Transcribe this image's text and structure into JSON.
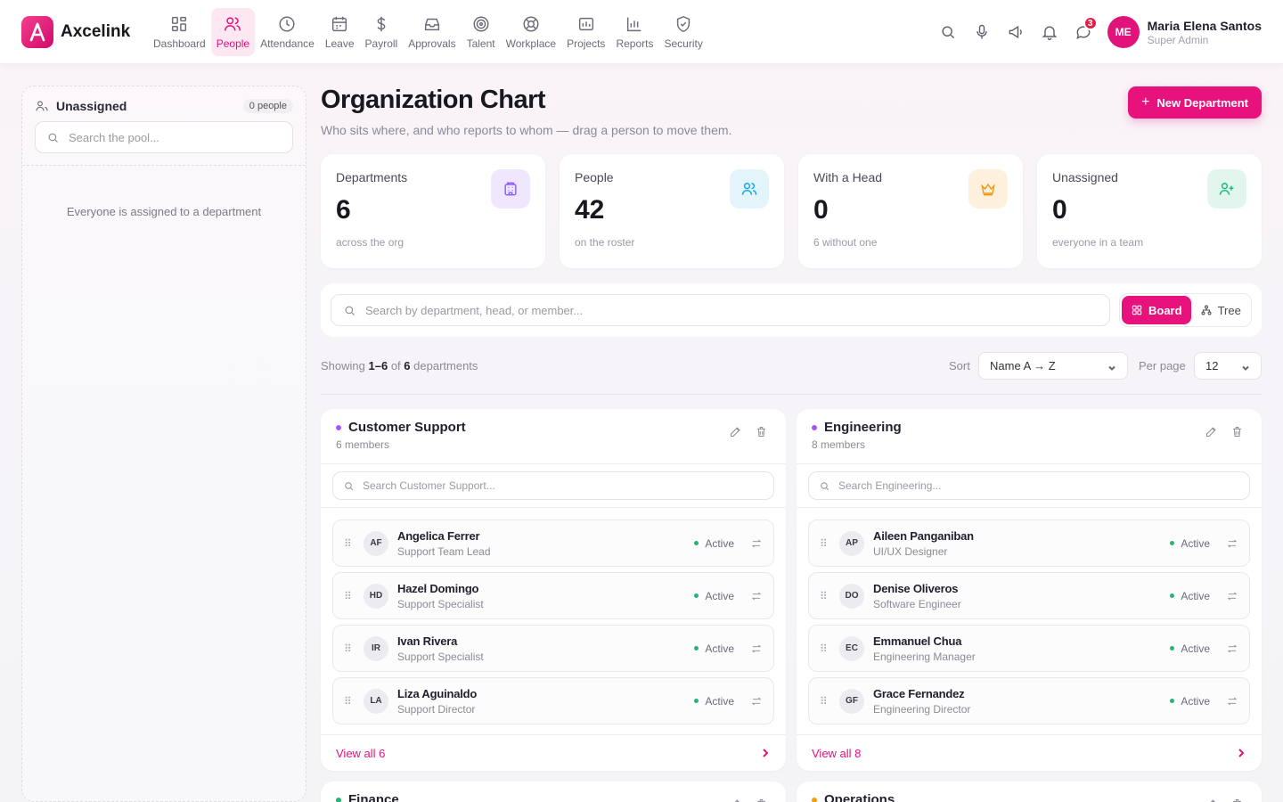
{
  "app": {
    "name": "Axcelink"
  },
  "nav": [
    {
      "label": "Dashboard",
      "icon": "dashboard-icon"
    },
    {
      "label": "People",
      "icon": "people-icon",
      "active": true
    },
    {
      "label": "Attendance",
      "icon": "clock-icon"
    },
    {
      "label": "Leave",
      "icon": "calendar-icon"
    },
    {
      "label": "Payroll",
      "icon": "dollar-icon"
    },
    {
      "label": "Approvals",
      "icon": "inbox-icon"
    },
    {
      "label": "Talent",
      "icon": "target-icon"
    },
    {
      "label": "Workplace",
      "icon": "lifebuoy-icon"
    },
    {
      "label": "Projects",
      "icon": "folder-icon"
    },
    {
      "label": "Reports",
      "icon": "bar-chart-icon"
    },
    {
      "label": "Security",
      "icon": "shield-icon"
    }
  ],
  "header": {
    "notifications_badge": "3",
    "user": {
      "initials": "ME",
      "name": "Maria Elena Santos",
      "role": "Super Admin"
    }
  },
  "pool": {
    "title": "Unassigned",
    "count": "0 people",
    "search_placeholder": "Search the pool...",
    "empty_text": "Everyone is assigned to a department"
  },
  "page": {
    "title": "Organization Chart",
    "subtitle": "Who sits where, and who reports to whom — drag a person to move them.",
    "new_department_label": "New Department"
  },
  "stats": [
    {
      "label": "Departments",
      "value": "6",
      "caption": "across the org",
      "icon": "building-icon",
      "bg": "#efe7fd",
      "color": "#8b5cf6"
    },
    {
      "label": "People",
      "value": "42",
      "caption": "on the roster",
      "icon": "people-icon",
      "bg": "#e3f4fb",
      "color": "#0ea5e9"
    },
    {
      "label": "With a Head",
      "value": "0",
      "caption": "6 without one",
      "icon": "crown-icon",
      "bg": "#fdf1de",
      "color": "#e89b0c"
    },
    {
      "label": "Unassigned",
      "value": "0",
      "caption": "everyone in a team",
      "icon": "user-plus-icon",
      "bg": "#e2f6ee",
      "color": "#10b981"
    }
  ],
  "filters": {
    "search_placeholder": "Search by department, head, or member...",
    "view_board": "Board",
    "view_tree": "Tree",
    "showing_prefix": "Showing",
    "showing_range": "1–6",
    "showing_of": "of",
    "showing_total": "6",
    "showing_suffix": "departments",
    "sort_label": "Sort",
    "sort_value": "Name A → Z",
    "perpage_label": "Per page",
    "perpage_value": "12"
  },
  "departments": [
    {
      "name": "Customer Support",
      "members_label": "6 members",
      "dot": "#a855f7",
      "search_placeholder": "Search Customer Support...",
      "view_all": "View all 6",
      "members": [
        {
          "initials": "AF",
          "name": "Angelica Ferrer",
          "role": "Support Team Lead",
          "status": "Active"
        },
        {
          "initials": "HD",
          "name": "Hazel Domingo",
          "role": "Support Specialist",
          "status": "Active"
        },
        {
          "initials": "IR",
          "name": "Ivan Rivera",
          "role": "Support Specialist",
          "status": "Active"
        },
        {
          "initials": "LA",
          "name": "Liza Aguinaldo",
          "role": "Support Director",
          "status": "Active"
        }
      ]
    },
    {
      "name": "Engineering",
      "members_label": "8 members",
      "dot": "#a855f7",
      "search_placeholder": "Search Engineering...",
      "view_all": "View all 8",
      "members": [
        {
          "initials": "AP",
          "name": "Aileen Panganiban",
          "role": "UI/UX Designer",
          "status": "Active"
        },
        {
          "initials": "DO",
          "name": "Denise Oliveros",
          "role": "Software Engineer",
          "status": "Active"
        },
        {
          "initials": "EC",
          "name": "Emmanuel Chua",
          "role": "Engineering Manager",
          "status": "Active"
        },
        {
          "initials": "GF",
          "name": "Grace Fernandez",
          "role": "Engineering Director",
          "status": "Active"
        }
      ]
    },
    {
      "name": "Finance",
      "dot": "#22b573"
    },
    {
      "name": "Operations",
      "dot": "#f59e0b"
    }
  ]
}
